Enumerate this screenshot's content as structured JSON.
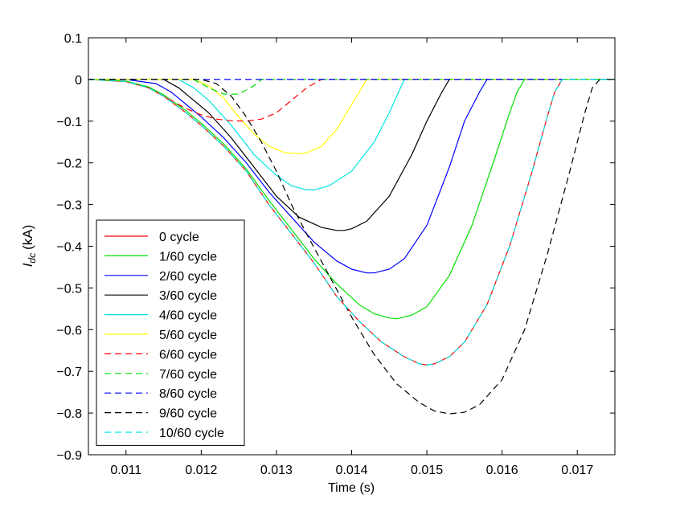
{
  "chart_data": {
    "type": "line",
    "xlabel": "Time (s)",
    "ylabel_main": "I",
    "ylabel_sub": "dc",
    "ylabel_unit": "(kA)",
    "xlim": [
      0.0105,
      0.0175
    ],
    "ylim": [
      -0.9,
      0.1
    ],
    "xticks": [
      0.011,
      0.012,
      0.013,
      0.014,
      0.015,
      0.016,
      0.017
    ],
    "xtick_labels": [
      "0.011",
      "0.012",
      "0.013",
      "0.014",
      "0.015",
      "0.016",
      "0.017"
    ],
    "yticks": [
      0.1,
      0,
      -0.1,
      -0.2,
      -0.3,
      -0.4,
      -0.5,
      -0.6,
      -0.7,
      -0.8,
      -0.9
    ],
    "ytick_labels": [
      "0.1",
      "0",
      "−0.1",
      "−0.2",
      "−0.3",
      "−0.4",
      "−0.5",
      "−0.6",
      "−0.7",
      "−0.8",
      "−0.9"
    ],
    "grid": false,
    "legend_position": "bottom-left",
    "series": [
      {
        "name": "0 cycle",
        "color": "#ff0000",
        "dash": "solid",
        "x": [
          0.0105,
          0.011,
          0.0113,
          0.0115,
          0.0118,
          0.012,
          0.0123,
          0.0126,
          0.0129,
          0.0132,
          0.0135,
          0.0138,
          0.0141,
          0.0144,
          0.0147,
          0.0149,
          0.015,
          0.0151,
          0.0153,
          0.0155,
          0.0158,
          0.0161,
          0.0164,
          0.0166,
          0.0167,
          0.0168,
          0.0175
        ],
        "y": [
          0,
          -0.005,
          -0.02,
          -0.04,
          -0.08,
          -0.11,
          -0.16,
          -0.22,
          -0.3,
          -0.37,
          -0.44,
          -0.52,
          -0.58,
          -0.63,
          -0.665,
          -0.682,
          -0.685,
          -0.682,
          -0.665,
          -0.63,
          -0.54,
          -0.4,
          -0.22,
          -0.09,
          -0.03,
          0,
          0
        ]
      },
      {
        "name": "1/60 cycle",
        "color": "#00e000",
        "dash": "solid",
        "x": [
          0.0105,
          0.011,
          0.0113,
          0.0115,
          0.0118,
          0.012,
          0.0123,
          0.0126,
          0.0129,
          0.0132,
          0.0135,
          0.0138,
          0.0141,
          0.0143,
          0.0145,
          0.0146,
          0.0148,
          0.015,
          0.0153,
          0.0156,
          0.0159,
          0.0161,
          0.0162,
          0.0163,
          0.0175
        ],
        "y": [
          0,
          -0.004,
          -0.018,
          -0.037,
          -0.075,
          -0.105,
          -0.155,
          -0.215,
          -0.29,
          -0.36,
          -0.43,
          -0.49,
          -0.54,
          -0.562,
          -0.572,
          -0.574,
          -0.565,
          -0.545,
          -0.47,
          -0.35,
          -0.19,
          -0.08,
          -0.03,
          0,
          0
        ]
      },
      {
        "name": "2/60 cycle",
        "color": "#0000ff",
        "dash": "solid",
        "x": [
          0.0105,
          0.011,
          0.0114,
          0.0116,
          0.0118,
          0.012,
          0.0123,
          0.0126,
          0.0129,
          0.0132,
          0.0135,
          0.0138,
          0.014,
          0.0142,
          0.0143,
          0.0145,
          0.0147,
          0.015,
          0.0153,
          0.0155,
          0.0157,
          0.0158,
          0.0175
        ],
        "y": [
          0,
          0,
          -0.01,
          -0.03,
          -0.06,
          -0.09,
          -0.14,
          -0.2,
          -0.27,
          -0.33,
          -0.39,
          -0.435,
          -0.455,
          -0.464,
          -0.464,
          -0.455,
          -0.43,
          -0.35,
          -0.21,
          -0.1,
          -0.03,
          0,
          0
        ]
      },
      {
        "name": "3/60 cycle",
        "color": "#000000",
        "dash": "solid",
        "x": [
          0.0105,
          0.011,
          0.0115,
          0.0117,
          0.0119,
          0.0121,
          0.0124,
          0.0127,
          0.013,
          0.0133,
          0.0136,
          0.0138,
          0.0139,
          0.014,
          0.0142,
          0.0145,
          0.0148,
          0.015,
          0.0152,
          0.0153,
          0.0175
        ],
        "y": [
          0,
          0,
          0,
          -0.02,
          -0.05,
          -0.08,
          -0.14,
          -0.21,
          -0.28,
          -0.33,
          -0.355,
          -0.362,
          -0.362,
          -0.358,
          -0.34,
          -0.28,
          -0.18,
          -0.1,
          -0.03,
          0,
          0
        ]
      },
      {
        "name": "4/60 cycle",
        "color": "#00e5e5",
        "dash": "solid",
        "x": [
          0.0105,
          0.0117,
          0.0119,
          0.0121,
          0.0124,
          0.0127,
          0.013,
          0.0132,
          0.0134,
          0.0135,
          0.0137,
          0.014,
          0.0143,
          0.0145,
          0.0147,
          0.0175
        ],
        "y": [
          0,
          0,
          -0.02,
          -0.05,
          -0.11,
          -0.18,
          -0.23,
          -0.255,
          -0.265,
          -0.265,
          -0.255,
          -0.22,
          -0.15,
          -0.08,
          0,
          0
        ]
      },
      {
        "name": "5/60 cycle",
        "color": "#ffff00",
        "dash": "solid",
        "x": [
          0.0105,
          0.0119,
          0.0121,
          0.0123,
          0.0125,
          0.0127,
          0.0129,
          0.0131,
          0.0133,
          0.0134,
          0.0136,
          0.0138,
          0.014,
          0.0141,
          0.0142,
          0.0175
        ],
        "y": [
          0,
          0,
          -0.015,
          -0.045,
          -0.09,
          -0.13,
          -0.16,
          -0.175,
          -0.178,
          -0.176,
          -0.16,
          -0.12,
          -0.06,
          -0.03,
          0,
          0
        ]
      },
      {
        "name": "6/60 cycle",
        "color": "#ff0000",
        "dash": "dashed",
        "x": [
          0.0105,
          0.011,
          0.0113,
          0.0115,
          0.0118,
          0.012,
          0.0122,
          0.0124,
          0.0126,
          0.0128,
          0.013,
          0.0132,
          0.0134,
          0.0136,
          0.0175
        ],
        "y": [
          0,
          -0.005,
          -0.02,
          -0.04,
          -0.07,
          -0.085,
          -0.095,
          -0.099,
          -0.1,
          -0.095,
          -0.08,
          -0.05,
          -0.02,
          0,
          0
        ]
      },
      {
        "name": "7/60 cycle",
        "color": "#00e000",
        "dash": "dashed",
        "x": [
          0.0105,
          0.0119,
          0.0121,
          0.0123,
          0.0125,
          0.0127,
          0.0128,
          0.0175
        ],
        "y": [
          0,
          0,
          -0.02,
          -0.035,
          -0.035,
          -0.015,
          0,
          0
        ]
      },
      {
        "name": "8/60 cycle",
        "color": "#0000ff",
        "dash": "dashed",
        "x": [
          0.0105,
          0.0175
        ],
        "y": [
          0,
          0
        ]
      },
      {
        "name": "9/60 cycle",
        "color": "#000000",
        "dash": "dashed",
        "x": [
          0.0105,
          0.012,
          0.0122,
          0.0124,
          0.0126,
          0.0128,
          0.013,
          0.0132,
          0.0134,
          0.0137,
          0.014,
          0.0143,
          0.0146,
          0.0149,
          0.0151,
          0.0153,
          0.0155,
          0.0157,
          0.016,
          0.0163,
          0.0166,
          0.0169,
          0.0171,
          0.0172,
          0.0173,
          0.0175
        ],
        "y": [
          0,
          0,
          -0.01,
          -0.04,
          -0.09,
          -0.15,
          -0.22,
          -0.3,
          -0.37,
          -0.47,
          -0.57,
          -0.66,
          -0.73,
          -0.775,
          -0.795,
          -0.802,
          -0.798,
          -0.78,
          -0.72,
          -0.6,
          -0.42,
          -0.22,
          -0.08,
          -0.02,
          0,
          0
        ]
      },
      {
        "name": "10/60 cycle",
        "color": "#00e5e5",
        "dash": "dashed",
        "x": [
          0.0105,
          0.011,
          0.0113,
          0.0115,
          0.0118,
          0.012,
          0.0123,
          0.0126,
          0.0129,
          0.0132,
          0.0135,
          0.0138,
          0.0141,
          0.0144,
          0.0147,
          0.0149,
          0.015,
          0.0151,
          0.0153,
          0.0155,
          0.0158,
          0.0161,
          0.0164,
          0.0166,
          0.0167,
          0.0168,
          0.0175
        ],
        "y": [
          0,
          -0.005,
          -0.02,
          -0.04,
          -0.08,
          -0.11,
          -0.16,
          -0.22,
          -0.3,
          -0.37,
          -0.44,
          -0.52,
          -0.58,
          -0.63,
          -0.665,
          -0.682,
          -0.685,
          -0.682,
          -0.665,
          -0.63,
          -0.54,
          -0.4,
          -0.22,
          -0.09,
          -0.03,
          0,
          0
        ]
      }
    ]
  }
}
